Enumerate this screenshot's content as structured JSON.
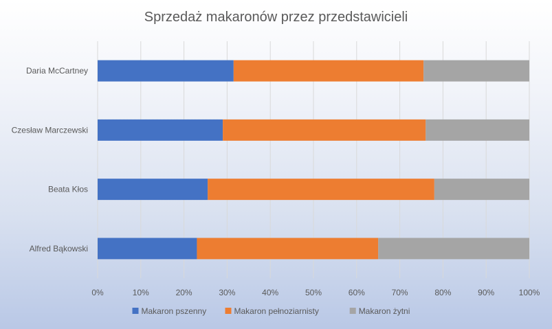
{
  "chart_data": {
    "type": "bar",
    "orientation": "horizontal",
    "stacked": "percent",
    "title": "Sprzedaż makaronów przez przedstawicieli",
    "categories": [
      "Daria McCartney",
      "Czesław Marczewski",
      "Beata Kłos",
      "Alfred Bąkowski"
    ],
    "series": [
      {
        "name": "Makaron pszenny",
        "values": [
          31.5,
          29,
          25.5,
          23
        ],
        "color": "#4472C4"
      },
      {
        "name": "Makaron pełnoziarnisty",
        "values": [
          44,
          47,
          52.5,
          42
        ],
        "color": "#ED7D31"
      },
      {
        "name": "Makaron żytni",
        "values": [
          24.5,
          24,
          22,
          35
        ],
        "color": "#A5A5A5"
      }
    ],
    "xlim": [
      0,
      100
    ],
    "x_ticks": [
      "0%",
      "10%",
      "20%",
      "30%",
      "40%",
      "50%",
      "60%",
      "70%",
      "80%",
      "90%",
      "100%"
    ],
    "grid": true,
    "legend_position": "bottom"
  }
}
